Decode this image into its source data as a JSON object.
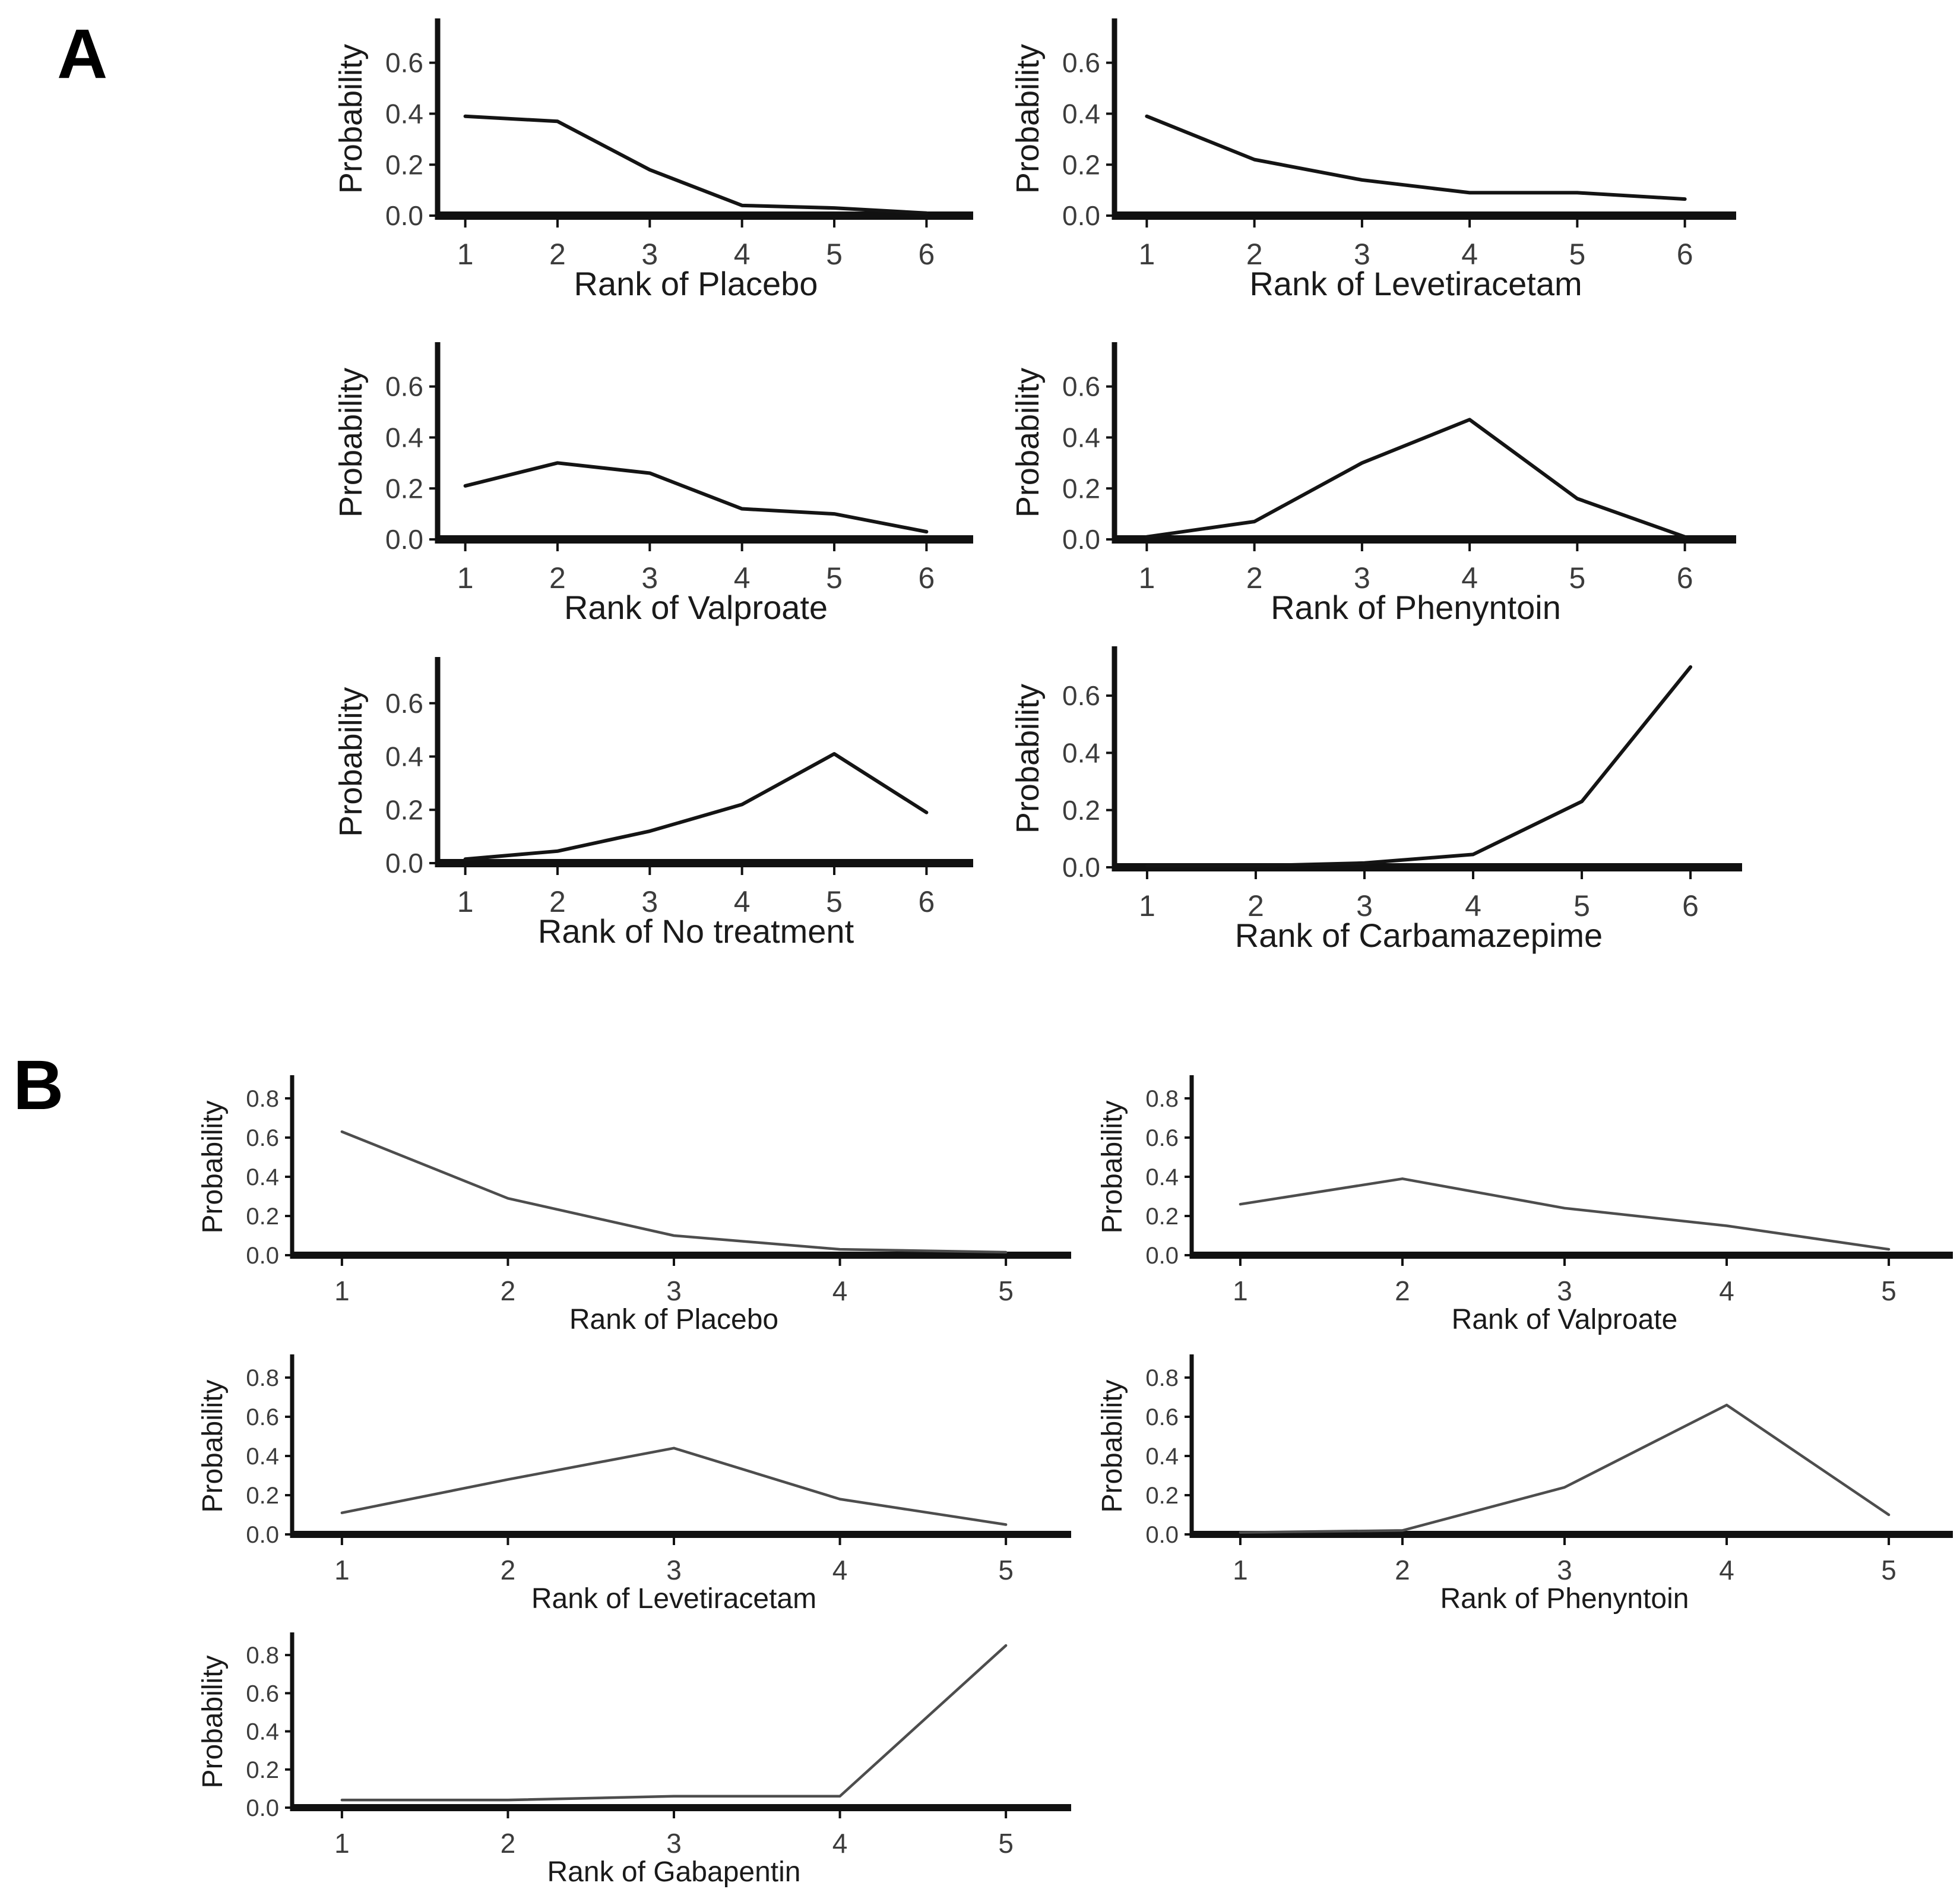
{
  "figure": {
    "panel_a_label": "A",
    "panel_b_label": "B",
    "ylabel": "Probability",
    "colors": {
      "panel_a_line": "#141414",
      "panel_b_line": "#4d4d4d",
      "axis": "#111111",
      "tick_label": "#3c3c3c",
      "title_text": "#1a1a1a"
    }
  },
  "chart_data": [
    {
      "type": "line",
      "panel": "A",
      "title": "Rank of Placebo",
      "xlabel": "Rank of Placebo",
      "ylabel": "Probability",
      "x": [
        1,
        2,
        3,
        4,
        5,
        6
      ],
      "y": [
        0.39,
        0.37,
        0.18,
        0.04,
        0.03,
        0.01
      ],
      "yticks": [
        0.0,
        0.2,
        0.4,
        0.6
      ],
      "ylim": [
        0,
        0.76
      ],
      "xlim": [
        0.7,
        6.3
      ],
      "grid": false,
      "legend": "none"
    },
    {
      "type": "line",
      "panel": "A",
      "title": "Rank of Levetiracetam",
      "xlabel": "Rank of Levetiracetam",
      "ylabel": "Probability",
      "x": [
        1,
        2,
        3,
        4,
        5,
        6
      ],
      "y": [
        0.39,
        0.22,
        0.14,
        0.09,
        0.09,
        0.065
      ],
      "yticks": [
        0.0,
        0.2,
        0.4,
        0.6
      ],
      "ylim": [
        0,
        0.76
      ],
      "xlim": [
        0.7,
        6.3
      ],
      "grid": false,
      "legend": "none"
    },
    {
      "type": "line",
      "panel": "A",
      "title": "Rank of Valproate",
      "xlabel": "Rank of Valproate",
      "ylabel": "Probability",
      "x": [
        1,
        2,
        3,
        4,
        5,
        6
      ],
      "y": [
        0.21,
        0.3,
        0.26,
        0.12,
        0.1,
        0.03
      ],
      "yticks": [
        0.0,
        0.2,
        0.4,
        0.6
      ],
      "ylim": [
        0,
        0.76
      ],
      "xlim": [
        0.7,
        6.3
      ],
      "grid": false,
      "legend": "none"
    },
    {
      "type": "line",
      "panel": "A",
      "title": "Rank of Phenyntoin",
      "xlabel": "Rank of Phenyntoin",
      "ylabel": "Probability",
      "x": [
        1,
        2,
        3,
        4,
        5,
        6
      ],
      "y": [
        0.01,
        0.07,
        0.3,
        0.47,
        0.16,
        0.01
      ],
      "yticks": [
        0.0,
        0.2,
        0.4,
        0.6
      ],
      "ylim": [
        0,
        0.76
      ],
      "xlim": [
        0.7,
        6.3
      ],
      "grid": false,
      "legend": "none"
    },
    {
      "type": "line",
      "panel": "A",
      "title": "Rank of No treatment",
      "xlabel": "Rank of No treatment",
      "ylabel": "Probability",
      "x": [
        1,
        2,
        3,
        4,
        5,
        6
      ],
      "y": [
        0.015,
        0.045,
        0.12,
        0.22,
        0.41,
        0.19
      ],
      "yticks": [
        0.0,
        0.2,
        0.4,
        0.6
      ],
      "ylim": [
        0,
        0.76
      ],
      "xlim": [
        0.7,
        6.3
      ],
      "grid": false,
      "legend": "none"
    },
    {
      "type": "line",
      "panel": "A",
      "title": "Rank of Carbamazepime",
      "xlabel": "Rank of Carbamazepime",
      "ylabel": "Probability",
      "x": [
        1,
        2,
        3,
        4,
        5,
        6
      ],
      "y": [
        0.005,
        0.005,
        0.015,
        0.045,
        0.23,
        0.7
      ],
      "yticks": [
        0.0,
        0.2,
        0.4,
        0.6
      ],
      "ylim": [
        0,
        0.76
      ],
      "xlim": [
        0.7,
        6.3
      ],
      "grid": false,
      "legend": "none"
    },
    {
      "type": "line",
      "panel": "B",
      "title": "Rank of Placebo",
      "xlabel": "Rank of Placebo",
      "ylabel": "Probability",
      "x": [
        1,
        2,
        3,
        4,
        5
      ],
      "y": [
        0.63,
        0.29,
        0.1,
        0.03,
        0.015
      ],
      "yticks": [
        0.0,
        0.2,
        0.4,
        0.6,
        0.8
      ],
      "ylim": [
        0,
        0.9
      ],
      "xlim": [
        0.7,
        5.3
      ],
      "grid": false,
      "legend": "none"
    },
    {
      "type": "line",
      "panel": "B",
      "title": "Rank of Valproate",
      "xlabel": "Rank of Valproate",
      "ylabel": "Probability",
      "x": [
        1,
        2,
        3,
        4,
        5
      ],
      "y": [
        0.26,
        0.39,
        0.24,
        0.15,
        0.03
      ],
      "yticks": [
        0.0,
        0.2,
        0.4,
        0.6,
        0.8
      ],
      "ylim": [
        0,
        0.9
      ],
      "xlim": [
        0.7,
        5.3
      ],
      "grid": false,
      "legend": "none"
    },
    {
      "type": "line",
      "panel": "B",
      "title": "Rank of Levetiracetam",
      "xlabel": "Rank of Levetiracetam",
      "ylabel": "Probability",
      "x": [
        1,
        2,
        3,
        4,
        5
      ],
      "y": [
        0.11,
        0.28,
        0.44,
        0.18,
        0.05
      ],
      "yticks": [
        0.0,
        0.2,
        0.4,
        0.6,
        0.8
      ],
      "ylim": [
        0,
        0.9
      ],
      "xlim": [
        0.7,
        5.3
      ],
      "grid": false,
      "legend": "none"
    },
    {
      "type": "line",
      "panel": "B",
      "title": "Rank of Phenyntoin",
      "xlabel": "Rank of Phenyntoin",
      "ylabel": "Probability",
      "x": [
        1,
        2,
        3,
        4,
        5
      ],
      "y": [
        0.01,
        0.02,
        0.24,
        0.66,
        0.1
      ],
      "yticks": [
        0.0,
        0.2,
        0.4,
        0.6,
        0.8
      ],
      "ylim": [
        0,
        0.9
      ],
      "xlim": [
        0.7,
        5.3
      ],
      "grid": false,
      "legend": "none"
    },
    {
      "type": "line",
      "panel": "B",
      "title": "Rank of Gabapentin",
      "xlabel": "Rank of Gabapentin",
      "ylabel": "Probability",
      "x": [
        1,
        2,
        3,
        4,
        5
      ],
      "y": [
        0.04,
        0.04,
        0.06,
        0.06,
        0.85
      ],
      "yticks": [
        0.0,
        0.2,
        0.4,
        0.6,
        0.8
      ],
      "ylim": [
        0,
        0.9
      ],
      "xlim": [
        0.7,
        5.3
      ],
      "grid": false,
      "legend": "none"
    }
  ]
}
